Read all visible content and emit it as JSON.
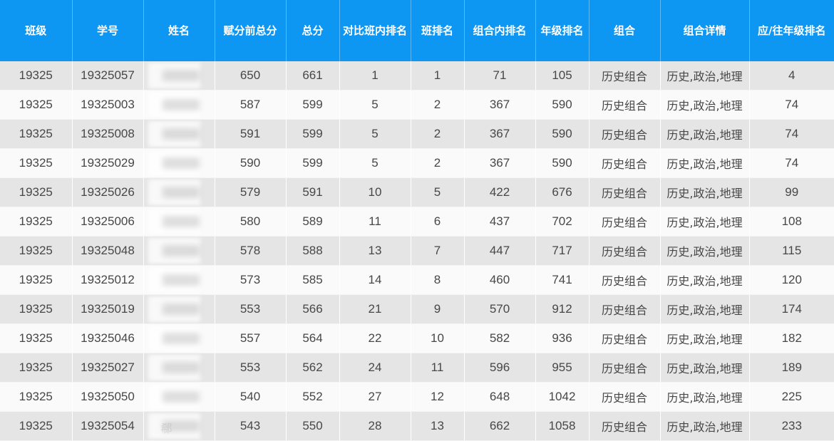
{
  "table": {
    "headers": [
      "班级",
      "学号",
      "姓名",
      "赋分前总分",
      "总分",
      "对比班内排名",
      "班排名",
      "组合内排名",
      "年级排名",
      "组合",
      "组合详情",
      "应/往年级排名"
    ],
    "rows": [
      {
        "class": "19325",
        "student_id": "19325057",
        "name": "",
        "pre_score_total": "650",
        "total": "661",
        "compare_class_rank": "1",
        "class_rank": "1",
        "combo_rank": "71",
        "grade_rank": "105",
        "combo": "历史组合",
        "combo_detail": "历史,政治,地理",
        "prev_grade_rank": "4"
      },
      {
        "class": "19325",
        "student_id": "19325003",
        "name": "",
        "pre_score_total": "587",
        "total": "599",
        "compare_class_rank": "5",
        "class_rank": "2",
        "combo_rank": "367",
        "grade_rank": "590",
        "combo": "历史组合",
        "combo_detail": "历史,政治,地理",
        "prev_grade_rank": "74"
      },
      {
        "class": "19325",
        "student_id": "19325008",
        "name": "",
        "pre_score_total": "591",
        "total": "599",
        "compare_class_rank": "5",
        "class_rank": "2",
        "combo_rank": "367",
        "grade_rank": "590",
        "combo": "历史组合",
        "combo_detail": "历史,政治,地理",
        "prev_grade_rank": "74"
      },
      {
        "class": "19325",
        "student_id": "19325029",
        "name": "",
        "pre_score_total": "590",
        "total": "599",
        "compare_class_rank": "5",
        "class_rank": "2",
        "combo_rank": "367",
        "grade_rank": "590",
        "combo": "历史组合",
        "combo_detail": "历史,政治,地理",
        "prev_grade_rank": "74"
      },
      {
        "class": "19325",
        "student_id": "19325026",
        "name": "",
        "pre_score_total": "579",
        "total": "591",
        "compare_class_rank": "10",
        "class_rank": "5",
        "combo_rank": "422",
        "grade_rank": "676",
        "combo": "历史组合",
        "combo_detail": "历史,政治,地理",
        "prev_grade_rank": "99"
      },
      {
        "class": "19325",
        "student_id": "19325006",
        "name": "",
        "pre_score_total": "580",
        "total": "589",
        "compare_class_rank": "11",
        "class_rank": "6",
        "combo_rank": "437",
        "grade_rank": "702",
        "combo": "历史组合",
        "combo_detail": "历史,政治,地理",
        "prev_grade_rank": "108"
      },
      {
        "class": "19325",
        "student_id": "19325048",
        "name": "",
        "pre_score_total": "578",
        "total": "588",
        "compare_class_rank": "13",
        "class_rank": "7",
        "combo_rank": "447",
        "grade_rank": "717",
        "combo": "历史组合",
        "combo_detail": "历史,政治,地理",
        "prev_grade_rank": "115"
      },
      {
        "class": "19325",
        "student_id": "19325012",
        "name": "",
        "pre_score_total": "573",
        "total": "585",
        "compare_class_rank": "14",
        "class_rank": "8",
        "combo_rank": "460",
        "grade_rank": "741",
        "combo": "历史组合",
        "combo_detail": "历史,政治,地理",
        "prev_grade_rank": "120"
      },
      {
        "class": "19325",
        "student_id": "19325019",
        "name": "",
        "pre_score_total": "553",
        "total": "566",
        "compare_class_rank": "21",
        "class_rank": "9",
        "combo_rank": "570",
        "grade_rank": "912",
        "combo": "历史组合",
        "combo_detail": "历史,政治,地理",
        "prev_grade_rank": "174"
      },
      {
        "class": "19325",
        "student_id": "19325046",
        "name": "",
        "pre_score_total": "557",
        "total": "564",
        "compare_class_rank": "22",
        "class_rank": "10",
        "combo_rank": "582",
        "grade_rank": "936",
        "combo": "历史组合",
        "combo_detail": "历史,政治,地理",
        "prev_grade_rank": "182"
      },
      {
        "class": "19325",
        "student_id": "19325027",
        "name": "",
        "pre_score_total": "553",
        "total": "562",
        "compare_class_rank": "24",
        "class_rank": "11",
        "combo_rank": "596",
        "grade_rank": "955",
        "combo": "历史组合",
        "combo_detail": "历史,政治,地理",
        "prev_grade_rank": "189"
      },
      {
        "class": "19325",
        "student_id": "19325050",
        "name": "",
        "pre_score_total": "540",
        "total": "552",
        "compare_class_rank": "27",
        "class_rank": "12",
        "combo_rank": "648",
        "grade_rank": "1042",
        "combo": "历史组合",
        "combo_detail": "历史,政治,地理",
        "prev_grade_rank": "225"
      },
      {
        "class": "19325",
        "student_id": "19325054",
        "name": "郗",
        "pre_score_total": "543",
        "total": "550",
        "compare_class_rank": "28",
        "class_rank": "13",
        "combo_rank": "662",
        "grade_rank": "1058",
        "combo": "历史组合",
        "combo_detail": "历史,政治,地理",
        "prev_grade_rank": "233"
      }
    ]
  },
  "colors": {
    "header_bg": "#0e96f3",
    "row_odd": "#e5e5e5",
    "row_even": "#fafafa"
  }
}
